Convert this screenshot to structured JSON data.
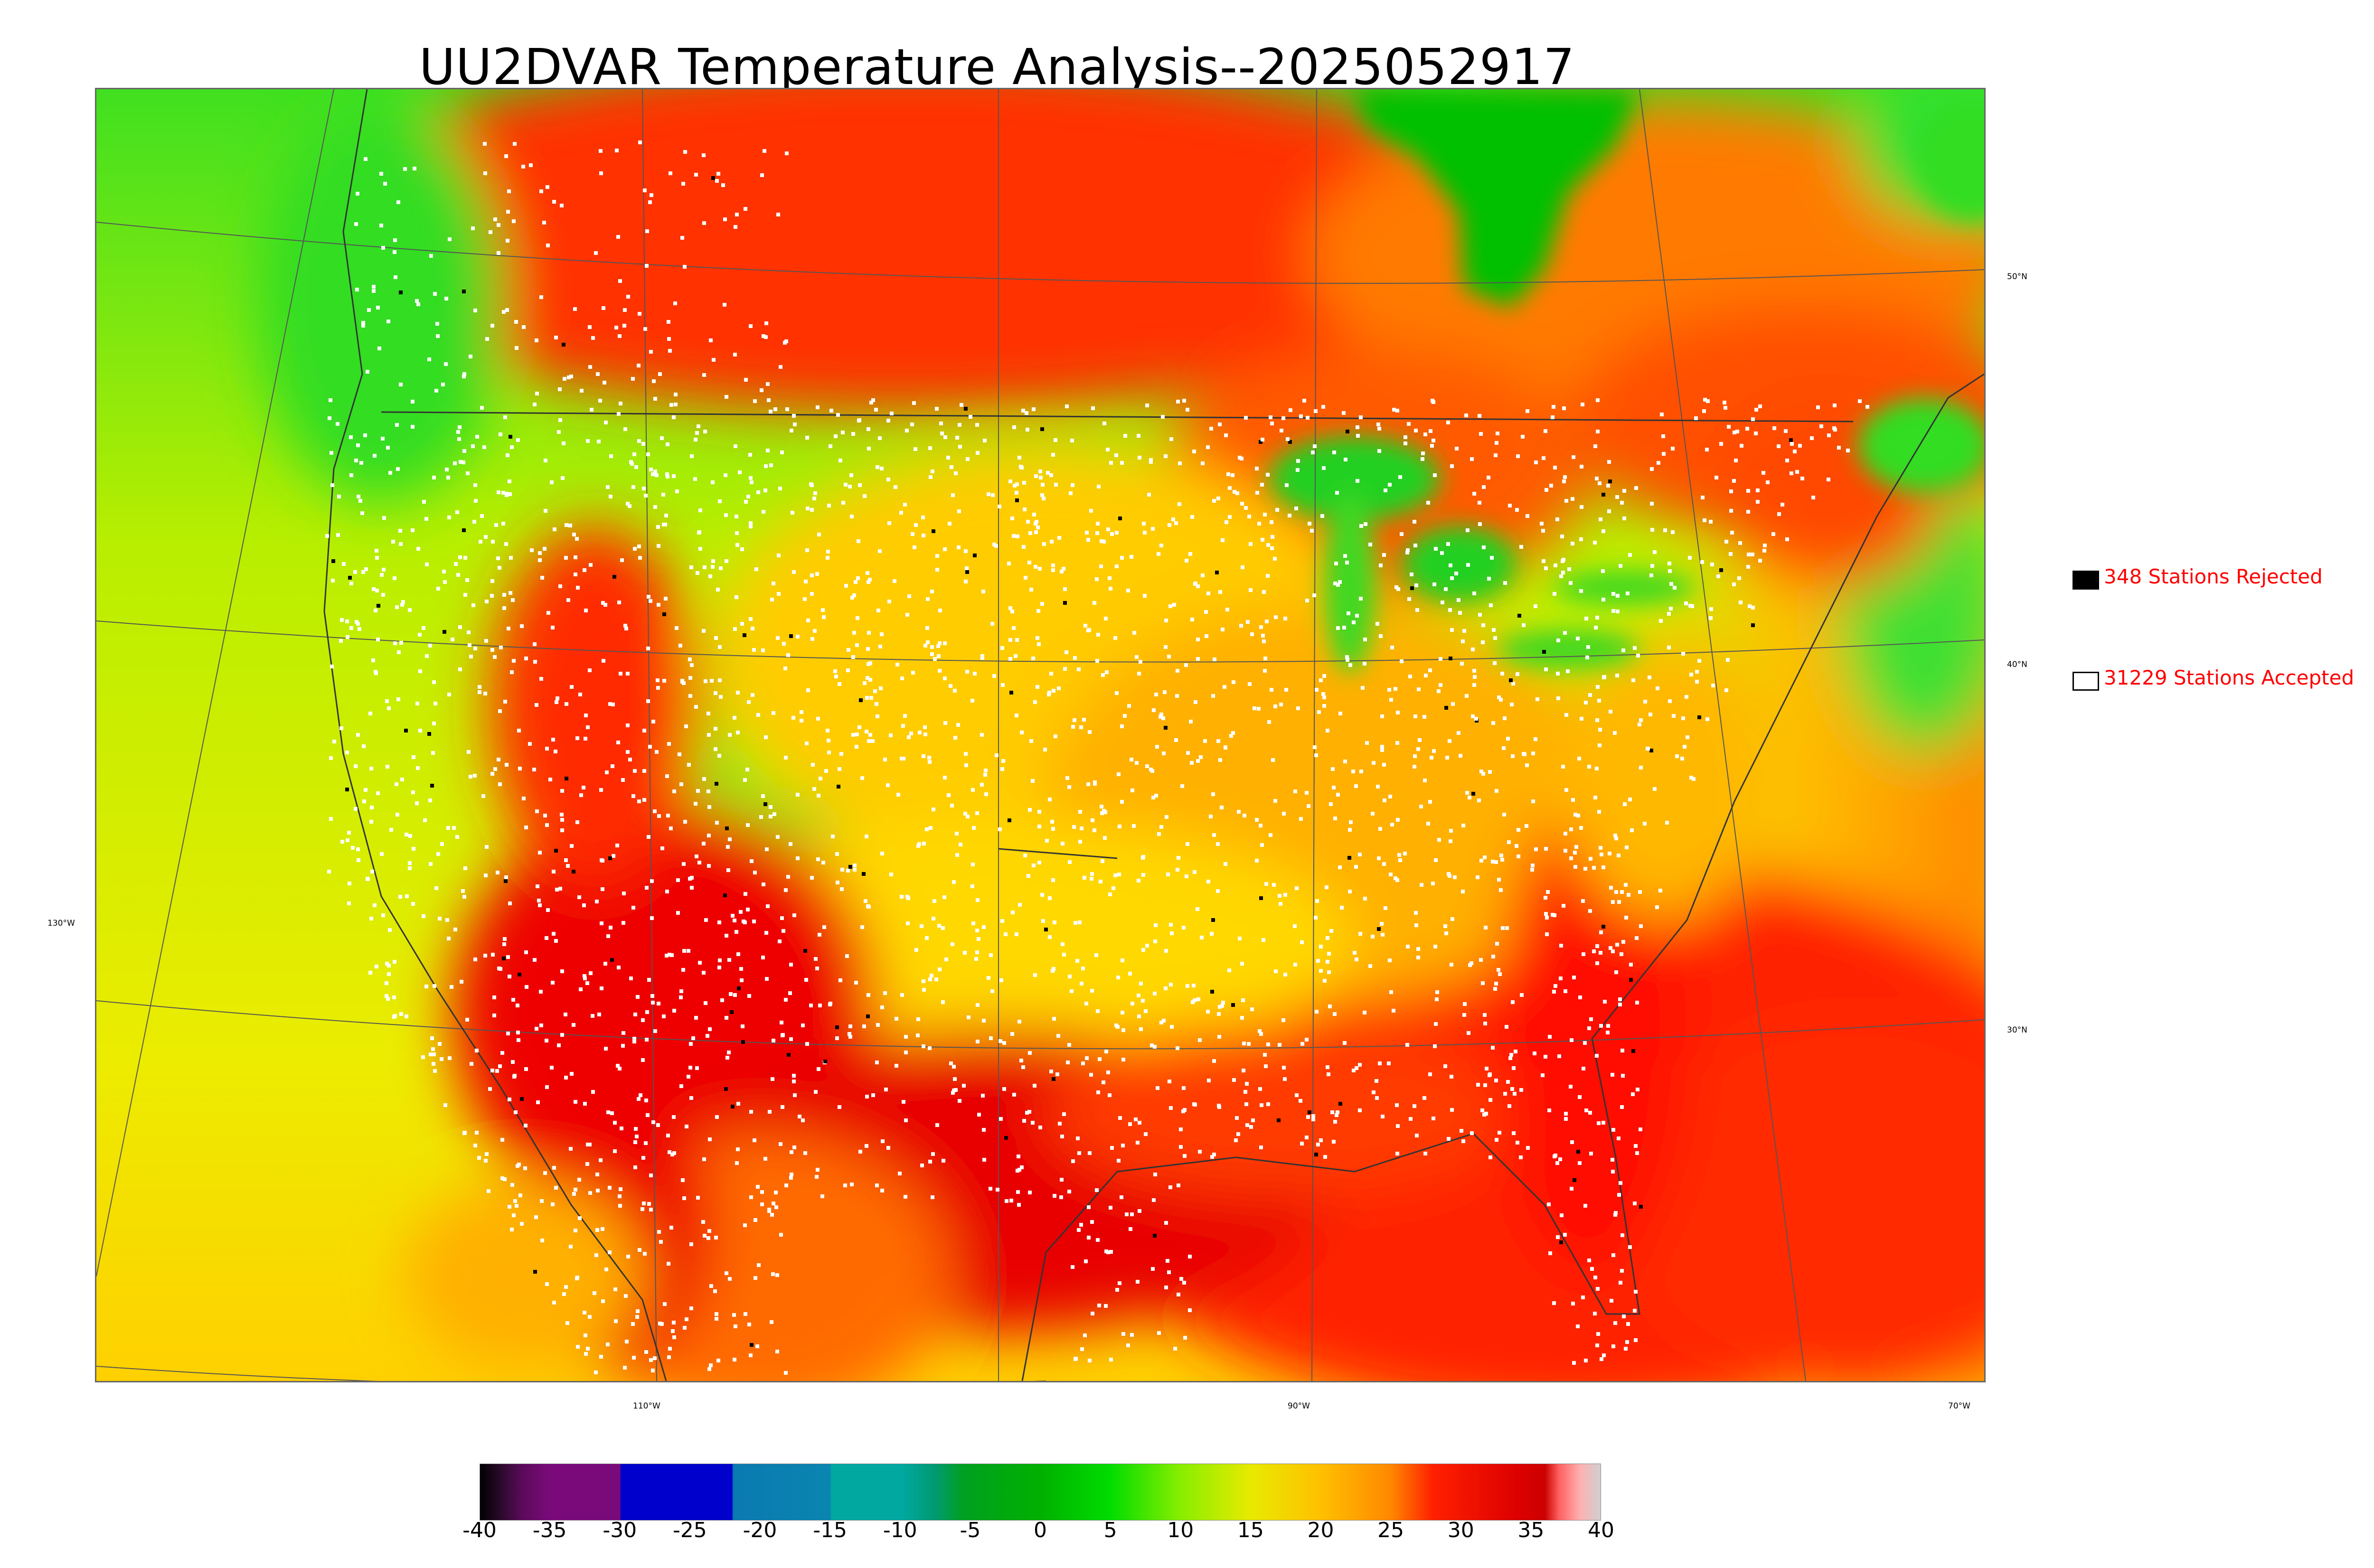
{
  "title": "UU2DVAR Temperature Analysis--2025052917",
  "legend": {
    "rejected": {
      "label": "348 Stations Rejected",
      "swatch": "#000000"
    },
    "accepted": {
      "label": "31229 Stations Accepted",
      "swatch": "#ffffff"
    }
  },
  "grid_labels": {
    "lat": [
      "50°N",
      "40°N",
      "30°N"
    ],
    "lon": [
      "130°W",
      "110°W",
      "90°W",
      "70°W"
    ]
  },
  "colorbar": {
    "min": -40,
    "max": 40,
    "ticks": [
      "-40",
      "-35",
      "-30",
      "-25",
      "-20",
      "-15",
      "-10",
      "-5",
      "0",
      "5",
      "10",
      "15",
      "20",
      "25",
      "30",
      "35",
      "40"
    ],
    "stops": [
      {
        "v": -40,
        "c": "#000000"
      },
      {
        "v": -38.5,
        "c": "#2a0a2a"
      },
      {
        "v": -37,
        "c": "#5a0a5a"
      },
      {
        "v": -35,
        "c": "#7a0a7a"
      },
      {
        "v": -30,
        "c": "#7a0a7a"
      },
      {
        "v": -29.9,
        "c": "#0000cc"
      },
      {
        "v": -22,
        "c": "#0000cc"
      },
      {
        "v": -21.9,
        "c": "#0a7ab0"
      },
      {
        "v": -15,
        "c": "#0a85b0"
      },
      {
        "v": -14.9,
        "c": "#00a8a0"
      },
      {
        "v": -9.9,
        "c": "#00a8a0"
      },
      {
        "v": -7.5,
        "c": "#009a70"
      },
      {
        "v": -5.5,
        "c": "#00a020"
      },
      {
        "v": 0,
        "c": "#00b000"
      },
      {
        "v": 5,
        "c": "#00dd00"
      },
      {
        "v": 10,
        "c": "#88ee00"
      },
      {
        "v": 15,
        "c": "#e8ea00"
      },
      {
        "v": 20,
        "c": "#ffc000"
      },
      {
        "v": 25,
        "c": "#ff8800"
      },
      {
        "v": 28,
        "c": "#ff2000"
      },
      {
        "v": 34,
        "c": "#dd0000"
      },
      {
        "v": 36,
        "c": "#cc0000"
      },
      {
        "v": 37,
        "c": "#ff6060"
      },
      {
        "v": 38.5,
        "c": "#ffb0b0"
      },
      {
        "v": 40,
        "c": "#d0d0d0"
      }
    ]
  },
  "palette": {
    "ocean_west": "#c8f000",
    "ocean_pacific_south": "#ffd000",
    "ocean_atlantic": "#ff9000",
    "gulf": "#ff1a00",
    "canada_north": "#ff3300",
    "rockies_cool": "#22dd22",
    "plains": "#ffc000",
    "southwest": "#e80000",
    "hudson_bay": "#00c000",
    "great_lakes": "#10d010",
    "station_accepted": "#ffffff",
    "station_rejected": "#000000"
  }
}
